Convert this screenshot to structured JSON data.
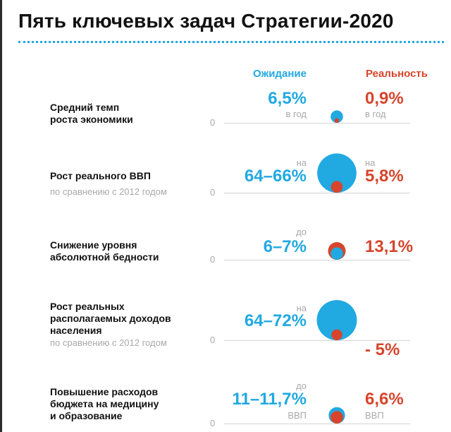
{
  "title": "Пять ключевых задач Стратегии-2020",
  "chart_data": {
    "type": "bubble",
    "title": "Пять ключевых задач Стратегии-2020",
    "columns": {
      "expected": "Ожидание",
      "reality": "Реальность"
    },
    "colors": {
      "expected": "#21a9e1",
      "reality": "#d6452c"
    },
    "baseline_label": "0",
    "tasks": [
      {
        "label_lines": [
          "Средний темп",
          "роста экономики"
        ],
        "sublabel": "",
        "expected": {
          "text": "6,5%",
          "note_top": "",
          "note_bottom": "в год",
          "value": 6.5
        },
        "reality": {
          "text": "0,9%",
          "note_top": "",
          "note_bottom": "в год",
          "value": 0.9
        }
      },
      {
        "label_lines": [
          "Рост реального ВВП"
        ],
        "sublabel": "по сравнению с 2012 годом",
        "expected": {
          "text": "64–66%",
          "note_top": "на",
          "note_bottom": "",
          "value": 65
        },
        "reality": {
          "text": "5,8%",
          "note_top": "на",
          "note_bottom": "",
          "value": 5.8
        }
      },
      {
        "label_lines": [
          "Снижение уровня",
          "абсолютной бедности"
        ],
        "sublabel": "",
        "expected": {
          "text": "6–7%",
          "note_top": "до",
          "note_bottom": "",
          "value": 6.5
        },
        "reality": {
          "text": "13,1%",
          "note_top": "",
          "note_bottom": "",
          "value": 13.1
        }
      },
      {
        "label_lines": [
          "Рост реальных",
          "располагаемых доходов",
          "населения"
        ],
        "sublabel": "по сравнению с 2012 годом",
        "expected": {
          "text": "64–72%",
          "note_top": "на",
          "note_bottom": "",
          "value": 68
        },
        "reality": {
          "text": "- 5%",
          "note_top": "",
          "note_bottom": "",
          "value": -5
        }
      },
      {
        "label_lines": [
          "Повышение расходов",
          "бюджета на медицину",
          "и образование"
        ],
        "sublabel": "",
        "expected": {
          "text": "11–11,7%",
          "note_top": "до",
          "note_bottom": "ВВП",
          "value": 11.35
        },
        "reality": {
          "text": "6,6%",
          "note_top": "",
          "note_bottom": "ВВП",
          "value": 6.6
        }
      }
    ]
  }
}
